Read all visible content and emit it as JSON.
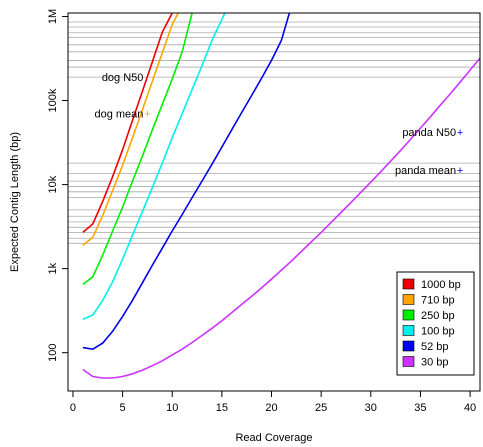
{
  "chart_data": {
    "type": "line",
    "xlabel": "Read Coverage",
    "ylabel": "Expected Contig Length (bp)",
    "xlim": [
      -0.5,
      41
    ],
    "ylim": [
      35,
      1100000
    ],
    "yscale": "log",
    "grid": "horizontal",
    "legend_position": "bottom-right",
    "x_ticks": [
      0,
      5,
      10,
      15,
      20,
      25,
      30,
      35,
      40
    ],
    "y_ticks": [
      {
        "value": 100,
        "label": "100"
      },
      {
        "value": 1000,
        "label": "1k"
      },
      {
        "value": 10000,
        "label": "10k"
      },
      {
        "value": 100000,
        "label": "100k"
      },
      {
        "value": 1000000,
        "label": "1M"
      }
    ],
    "series": [
      {
        "name": "1000 bp",
        "color": "#ee0000",
        "points": [
          [
            1,
            2700
          ],
          [
            2,
            3400
          ],
          [
            3,
            6300
          ],
          [
            4,
            12500
          ],
          [
            5,
            26000
          ],
          [
            6,
            58000
          ],
          [
            7,
            130000
          ],
          [
            8,
            290000
          ],
          [
            9,
            650000
          ],
          [
            10,
            1100000
          ]
        ]
      },
      {
        "name": "710 bp",
        "color": "#ffa500",
        "points": [
          [
            1,
            1900
          ],
          [
            2,
            2350
          ],
          [
            3,
            4300
          ],
          [
            4,
            8500
          ],
          [
            5,
            17000
          ],
          [
            6,
            36000
          ],
          [
            7,
            78000
          ],
          [
            8,
            170000
          ],
          [
            9,
            370000
          ],
          [
            10,
            800000
          ],
          [
            10.6,
            1100000
          ]
        ]
      },
      {
        "name": "250 bp",
        "color": "#00ee00",
        "points": [
          [
            1,
            650
          ],
          [
            2,
            800
          ],
          [
            3,
            1450
          ],
          [
            4,
            2800
          ],
          [
            5,
            5400
          ],
          [
            6,
            11000
          ],
          [
            7,
            22000
          ],
          [
            8,
            45000
          ],
          [
            9,
            90000
          ],
          [
            10,
            180000
          ],
          [
            11,
            380000
          ],
          [
            12,
            1100000
          ]
        ]
      },
      {
        "name": "100 bp",
        "color": "#00eeee",
        "points": [
          [
            1,
            250
          ],
          [
            2,
            280
          ],
          [
            3,
            420
          ],
          [
            4,
            700
          ],
          [
            5,
            1300
          ],
          [
            6,
            2500
          ],
          [
            7,
            4800
          ],
          [
            8,
            9200
          ],
          [
            9,
            18000
          ],
          [
            10,
            36000
          ],
          [
            11,
            70000
          ],
          [
            12,
            135000
          ],
          [
            13,
            260000
          ],
          [
            14,
            520000
          ],
          [
            15.3,
            1100000
          ]
        ]
      },
      {
        "name": "52 bp",
        "color": "#0000ee",
        "points": [
          [
            1,
            115
          ],
          [
            2,
            110
          ],
          [
            3,
            130
          ],
          [
            4,
            180
          ],
          [
            5,
            270
          ],
          [
            6,
            420
          ],
          [
            7,
            680
          ],
          [
            8,
            1100
          ],
          [
            9,
            1750
          ],
          [
            10,
            2800
          ],
          [
            11,
            4400
          ],
          [
            12,
            7000
          ],
          [
            13,
            11000
          ],
          [
            14,
            17500
          ],
          [
            15,
            28000
          ],
          [
            16,
            45000
          ],
          [
            17,
            72000
          ],
          [
            18,
            115000
          ],
          [
            19,
            185000
          ],
          [
            20,
            300000
          ],
          [
            21,
            520000
          ],
          [
            21.8,
            1100000
          ]
        ]
      },
      {
        "name": "30 bp",
        "color": "#cc33ff",
        "points": [
          [
            1,
            63
          ],
          [
            2,
            52
          ],
          [
            3,
            50
          ],
          [
            4,
            50
          ],
          [
            5,
            52
          ],
          [
            6,
            56
          ],
          [
            7,
            62
          ],
          [
            8,
            70
          ],
          [
            9,
            80
          ],
          [
            10,
            94
          ],
          [
            11,
            110
          ],
          [
            12,
            132
          ],
          [
            13,
            160
          ],
          [
            14,
            195
          ],
          [
            15,
            240
          ],
          [
            16,
            300
          ],
          [
            17,
            375
          ],
          [
            18,
            470
          ],
          [
            19,
            590
          ],
          [
            20,
            750
          ],
          [
            21,
            960
          ],
          [
            22,
            1230
          ],
          [
            23,
            1600
          ],
          [
            24,
            2080
          ],
          [
            25,
            2700
          ],
          [
            26,
            3550
          ],
          [
            27,
            4650
          ],
          [
            28,
            6100
          ],
          [
            29,
            8100
          ],
          [
            30,
            10700
          ],
          [
            31,
            14200
          ],
          [
            32,
            19000
          ],
          [
            33,
            25500
          ],
          [
            34,
            34500
          ],
          [
            35,
            47000
          ],
          [
            36,
            64000
          ],
          [
            37,
            88000
          ],
          [
            38,
            120000
          ],
          [
            39,
            165000
          ],
          [
            40,
            230000
          ],
          [
            41,
            320000
          ]
        ]
      }
    ],
    "annotations": [
      {
        "label": "dog N50",
        "x": 7.5,
        "y": 190000,
        "marker": false,
        "color": "#ffa500"
      },
      {
        "label": "dog mean",
        "x": 7.5,
        "y": 70000,
        "marker": true,
        "color": "#ffa500"
      },
      {
        "label": "panda N50",
        "x": 39,
        "y": 42000,
        "marker": true,
        "color": "#0000ee"
      },
      {
        "label": "panda mean",
        "x": 39,
        "y": 15000,
        "marker": true,
        "color": "#0000ee"
      }
    ],
    "hlines": [
      {
        "group": "dog",
        "color": "#aaaaaa",
        "values": [
          7000,
          8200,
          9500,
          11000,
          13500,
          18000,
          190000,
          250000,
          300000,
          380000,
          460000,
          560000,
          640000,
          750000,
          860000
        ]
      },
      {
        "group": "panda",
        "color": "#aaaaaa",
        "values": [
          2000,
          2300,
          2700,
          3100,
          3600,
          4200,
          5000
        ]
      }
    ]
  }
}
